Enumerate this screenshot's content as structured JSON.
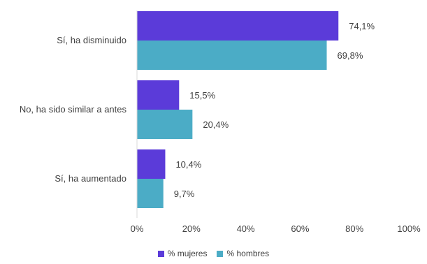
{
  "chart_data": {
    "type": "bar",
    "orientation": "horizontal",
    "categories": [
      "Sí, ha disminuido",
      "No, ha sido similar a antes",
      "Sí, ha aumentado"
    ],
    "series": [
      {
        "name": "% mujeres",
        "values": [
          74.1,
          15.5,
          10.4
        ],
        "labels": [
          "74,1%",
          "15,5%",
          "10,4%"
        ],
        "color": "#5B3BD9"
      },
      {
        "name": "% hombres",
        "values": [
          69.8,
          20.4,
          9.7
        ],
        "labels": [
          "69,8%",
          "20,4%",
          "9,7%"
        ],
        "color": "#4BACC6"
      }
    ],
    "xlim": [
      0,
      100
    ],
    "x_ticks": [
      "0%",
      "20%",
      "40%",
      "60%",
      "80%",
      "100%"
    ],
    "grid": false,
    "legend_position": "bottom"
  }
}
